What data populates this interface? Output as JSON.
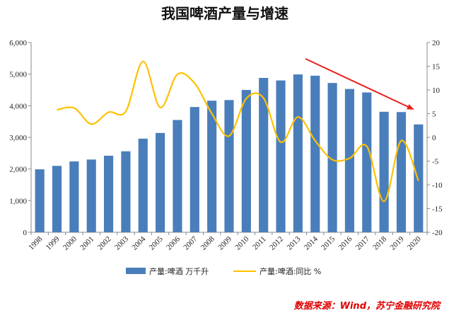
{
  "chart_data": {
    "type": "bar+line",
    "title": "我国啤酒产量与增速",
    "categories": [
      "1998",
      "1999",
      "2000",
      "2001",
      "2002",
      "2003",
      "2004",
      "2005",
      "2006",
      "2007",
      "2008",
      "2009",
      "2010",
      "2011",
      "2012",
      "2013",
      "2014",
      "2015",
      "2016",
      "2017",
      "2018",
      "2019",
      "2020"
    ],
    "series": [
      {
        "name": "产量:啤酒 万千升",
        "type": "bar",
        "axis": "left",
        "color": "#4a7ebb",
        "values": [
          1990,
          2100,
          2240,
          2300,
          2420,
          2560,
          2960,
          3140,
          3550,
          3960,
          4160,
          4180,
          4500,
          4880,
          4800,
          4990,
          4950,
          4720,
          4530,
          4420,
          3810,
          3800,
          3410
        ]
      },
      {
        "name": "产量:啤酒:同比 %",
        "type": "line",
        "axis": "right",
        "color": "#ffc000",
        "values": [
          null,
          5.8,
          6.2,
          2.8,
          5.3,
          5.5,
          16.0,
          6.3,
          13.3,
          11.4,
          5.0,
          0.3,
          8.2,
          8.3,
          -1.0,
          4.3,
          -0.7,
          -4.7,
          -4.4,
          -1.9,
          -13.5,
          -0.7,
          -9.2
        ]
      }
    ],
    "y_left": {
      "min": 0,
      "max": 6000,
      "ticks": [
        "0",
        "1,000",
        "2,000",
        "3,000",
        "4,000",
        "5,000",
        "6,000"
      ]
    },
    "y_right": {
      "min": -20,
      "max": 20,
      "ticks": [
        "-20",
        "-15",
        "-10",
        "-5",
        "0",
        "5",
        "10",
        "15",
        "20"
      ]
    },
    "grid": false,
    "legend": "bottom",
    "annotation": "downward-trend-arrow"
  },
  "source": "数据来源：Wind，苏宁金融研究院"
}
